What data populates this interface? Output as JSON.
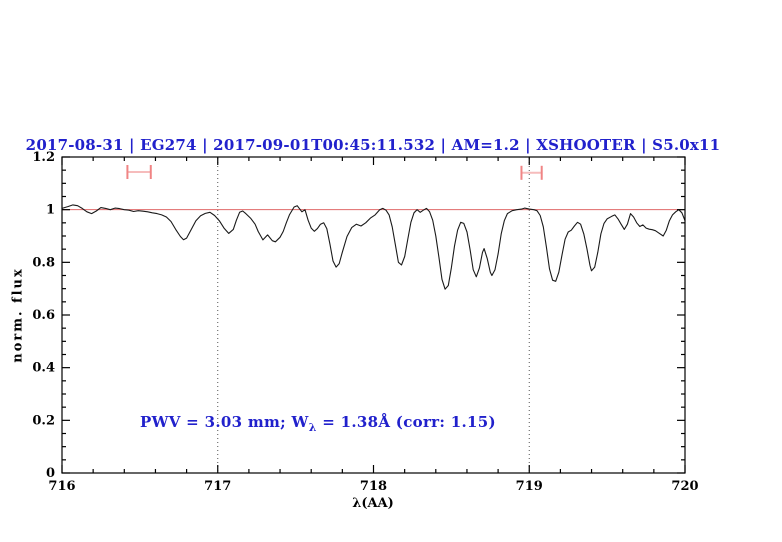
{
  "title": {
    "text": "2017-08-31 | EG274 | 2017-09-01T00:45:11.532 | AM=1.2 | XSHOOTER | S5.0x11",
    "color": "#2121cc"
  },
  "annotation": {
    "pre": "PWV = 3.03 mm; W",
    "sub": "λ",
    "post": " = 1.38Å (corr: 1.15)",
    "color": "#2121cc"
  },
  "axes": {
    "xlabel": "λ(AA)",
    "ylabel": "norm. flux",
    "xlim": [
      716,
      720
    ],
    "ylim": [
      0,
      1.2
    ],
    "xticks": [
      "716",
      "717",
      "718",
      "719",
      "720"
    ],
    "xtick_vals": [
      716,
      717,
      718,
      719,
      720
    ],
    "xminor_step": 0.2,
    "yticks": [
      "0",
      "0.2",
      "0.4",
      "0.6",
      "0.8",
      "1",
      "1.2"
    ],
    "ytick_vals": [
      0,
      0.2,
      0.4,
      0.6,
      0.8,
      1.0,
      1.2
    ],
    "yminor_step": 0.05,
    "dotted_gridlines_x": [
      717,
      719
    ],
    "grid_color": "#555555",
    "frame_color": "#000000"
  },
  "chart_data": {
    "type": "line",
    "title": "2017-08-31 | EG274 | 2017-09-01T00:45:11.532 | AM=1.2 | XSHOOTER | S5.0x11",
    "xlabel": "λ(AA)",
    "ylabel": "norm. flux",
    "xlim": [
      716,
      720
    ],
    "ylim": [
      0,
      1.2
    ],
    "legend": "none",
    "grid": "dotted vertical lines at x=717 and x=719",
    "series": [
      {
        "name": "telluric-spectrum",
        "color": "#1a1a1a",
        "x": [
          716.0,
          716.04,
          716.07,
          716.1,
          716.13,
          716.16,
          716.19,
          716.22,
          716.25,
          716.28,
          716.31,
          716.34,
          716.37,
          716.4,
          716.43,
          716.46,
          716.49,
          716.52,
          716.55,
          716.58,
          716.61,
          716.64,
          716.67,
          716.7,
          716.73,
          716.76,
          716.78,
          716.8,
          716.83,
          716.86,
          716.89,
          716.92,
          716.95,
          716.98,
          717.01,
          717.04,
          717.07,
          717.1,
          717.12,
          717.14,
          717.16,
          717.18,
          717.21,
          717.24,
          717.26,
          717.29,
          717.32,
          717.35,
          717.37,
          717.4,
          717.42,
          717.44,
          717.46,
          717.49,
          717.51,
          717.54,
          717.56,
          717.58,
          717.6,
          717.62,
          717.64,
          717.66,
          717.68,
          717.7,
          717.72,
          717.74,
          717.76,
          717.78,
          717.8,
          717.83,
          717.86,
          717.89,
          717.92,
          717.95,
          717.98,
          718.01,
          718.04,
          718.06,
          718.08,
          718.1,
          718.12,
          718.14,
          718.16,
          718.18,
          718.2,
          718.22,
          718.24,
          718.26,
          718.28,
          718.3,
          718.32,
          718.34,
          718.36,
          718.38,
          718.4,
          718.42,
          718.44,
          718.46,
          718.48,
          718.5,
          718.52,
          718.54,
          718.56,
          718.58,
          718.6,
          718.62,
          718.64,
          718.66,
          718.68,
          718.7,
          718.71,
          718.73,
          718.75,
          718.76,
          718.78,
          718.8,
          718.82,
          718.84,
          718.86,
          718.89,
          718.92,
          718.95,
          718.97,
          719.0,
          719.03,
          719.05,
          719.07,
          719.09,
          719.11,
          719.13,
          719.15,
          719.17,
          719.19,
          719.21,
          719.23,
          719.25,
          719.27,
          719.29,
          719.31,
          719.33,
          719.35,
          719.37,
          719.39,
          719.4,
          719.42,
          719.44,
          719.46,
          719.48,
          719.5,
          719.53,
          719.55,
          719.57,
          719.59,
          719.61,
          719.63,
          719.65,
          719.67,
          719.69,
          719.71,
          719.73,
          719.75,
          719.77,
          719.79,
          719.81,
          719.83,
          719.86,
          719.88,
          719.9,
          719.92,
          719.94,
          719.96,
          719.98,
          720.0
        ],
        "y": [
          1.005,
          1.012,
          1.018,
          1.015,
          1.005,
          0.992,
          0.985,
          0.995,
          1.008,
          1.005,
          1.0,
          1.006,
          1.004,
          1.0,
          0.998,
          0.993,
          0.996,
          0.994,
          0.992,
          0.988,
          0.985,
          0.98,
          0.972,
          0.955,
          0.925,
          0.898,
          0.886,
          0.892,
          0.925,
          0.958,
          0.977,
          0.986,
          0.99,
          0.978,
          0.958,
          0.93,
          0.91,
          0.925,
          0.96,
          0.99,
          0.995,
          0.985,
          0.968,
          0.945,
          0.917,
          0.885,
          0.904,
          0.882,
          0.878,
          0.895,
          0.917,
          0.95,
          0.98,
          1.01,
          1.015,
          0.992,
          1.0,
          0.96,
          0.93,
          0.918,
          0.928,
          0.945,
          0.95,
          0.928,
          0.87,
          0.805,
          0.782,
          0.795,
          0.838,
          0.898,
          0.932,
          0.945,
          0.938,
          0.95,
          0.968,
          0.98,
          1.0,
          1.005,
          0.998,
          0.98,
          0.935,
          0.868,
          0.8,
          0.79,
          0.822,
          0.888,
          0.952,
          0.988,
          1.0,
          0.99,
          0.998,
          1.005,
          0.992,
          0.96,
          0.9,
          0.82,
          0.735,
          0.698,
          0.712,
          0.78,
          0.862,
          0.922,
          0.952,
          0.948,
          0.915,
          0.848,
          0.772,
          0.745,
          0.778,
          0.838,
          0.852,
          0.815,
          0.762,
          0.75,
          0.772,
          0.832,
          0.908,
          0.958,
          0.985,
          0.996,
          1.0,
          1.002,
          1.006,
          1.002,
          1.0,
          0.996,
          0.978,
          0.935,
          0.858,
          0.775,
          0.732,
          0.728,
          0.762,
          0.828,
          0.888,
          0.915,
          0.922,
          0.938,
          0.952,
          0.945,
          0.908,
          0.852,
          0.788,
          0.768,
          0.782,
          0.838,
          0.908,
          0.948,
          0.965,
          0.975,
          0.98,
          0.965,
          0.945,
          0.925,
          0.945,
          0.985,
          0.972,
          0.95,
          0.936,
          0.942,
          0.93,
          0.926,
          0.924,
          0.92,
          0.912,
          0.9,
          0.922,
          0.958,
          0.98,
          0.992,
          1.0,
          0.988,
          0.958
        ]
      },
      {
        "name": "continuum-reference-line",
        "color": "#e06a6a",
        "y_const": 1.0
      }
    ],
    "band_markers": [
      {
        "name": "band-marker-left",
        "x_start": 716.42,
        "x_end": 716.57,
        "y": 1.143,
        "cap_color": "#f08484",
        "bar_color": "#f6bcbc"
      },
      {
        "name": "band-marker-right",
        "x_start": 718.95,
        "x_end": 719.08,
        "y": 1.14,
        "cap_color": "#f08484",
        "bar_color": "#f6bcbc"
      }
    ]
  }
}
